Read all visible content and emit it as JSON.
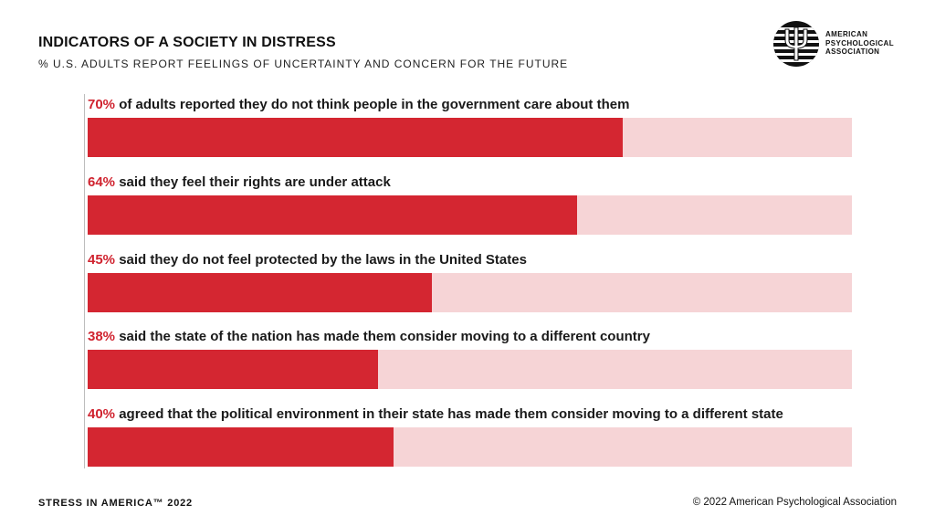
{
  "header": {
    "title": "INDICATORS OF A SOCIETY IN DISTRESS",
    "subtitle": "% U.S. ADULTS REPORT FEELINGS OF UNCERTAINTY AND CONCERN FOR THE FUTURE"
  },
  "logo": {
    "line1": "AMERICAN",
    "line2": "PSYCHOLOGICAL",
    "line3": "ASSOCIATION",
    "icon": "psi-icon"
  },
  "colors": {
    "bar_fill": "#d42631",
    "bar_track": "#f6d4d6",
    "percent_text": "#d0232f"
  },
  "chart_data": {
    "type": "bar",
    "orientation": "horizontal",
    "xlim": [
      0,
      100
    ],
    "title": "INDICATORS OF A SOCIETY IN DISTRESS",
    "subtitle": "% U.S. ADULTS REPORT FEELINGS OF UNCERTAINTY AND CONCERN FOR THE FUTURE",
    "bars": [
      {
        "pct_label": "70%",
        "text": "of adults reported they do not think people in the government care about them",
        "value": 70
      },
      {
        "pct_label": "64%",
        "text": "said they feel their rights are under attack",
        "value": 64
      },
      {
        "pct_label": "45%",
        "text": "said they do not feel protected by the laws in the United States",
        "value": 45
      },
      {
        "pct_label": "38%",
        "text": "said the state of the nation has made them consider moving to a different country",
        "value": 38
      },
      {
        "pct_label": "40%",
        "text": "agreed that the political environment in their state has made them consider moving to a different state",
        "value": 40
      }
    ]
  },
  "footer": {
    "left": "STRESS IN AMERICA™ 2022",
    "right": "© 2022 American Psychological Association"
  }
}
